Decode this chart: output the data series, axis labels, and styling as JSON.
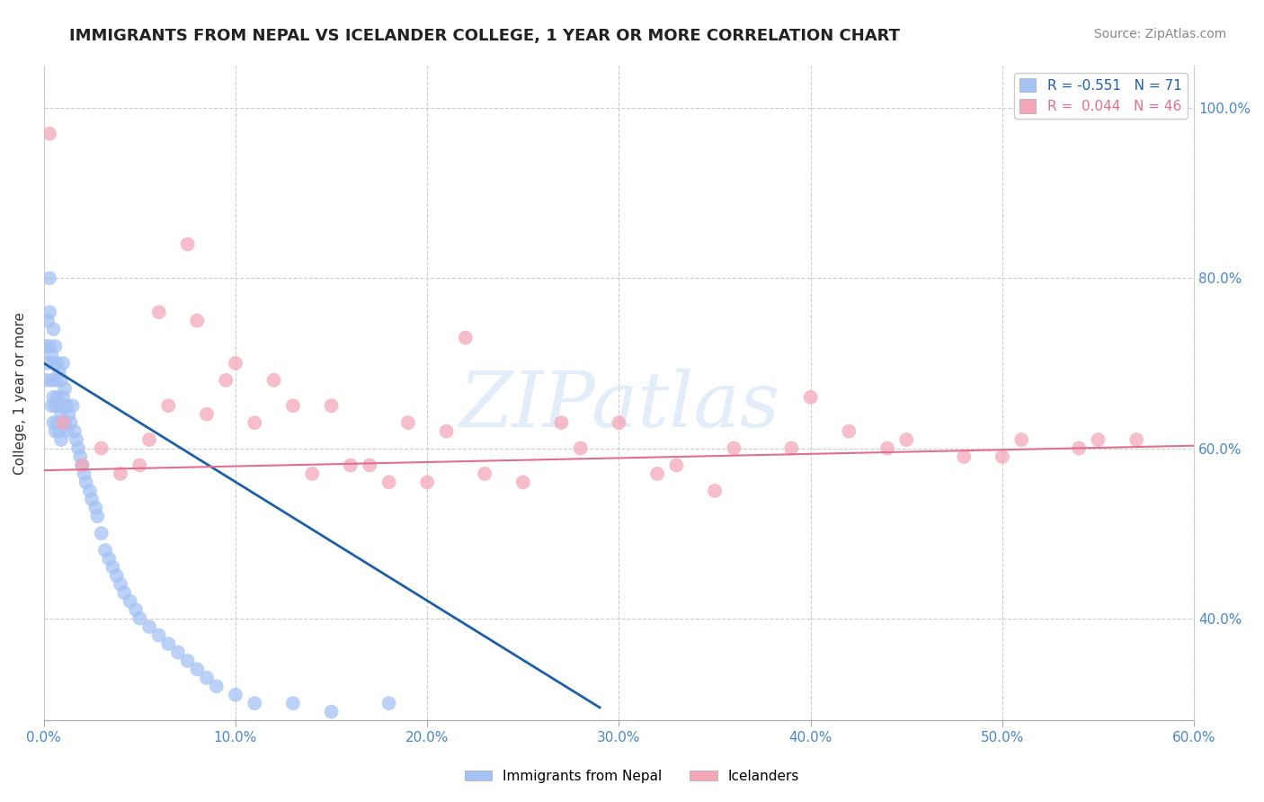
{
  "title": "IMMIGRANTS FROM NEPAL VS ICELANDER COLLEGE, 1 YEAR OR MORE CORRELATION CHART",
  "source": "Source: ZipAtlas.com",
  "ylabel": "College, 1 year or more",
  "legend_labels_bottom": [
    "Immigrants from Nepal",
    "Icelanders"
  ],
  "nepal_scatter_x": [
    0.001,
    0.001,
    0.002,
    0.002,
    0.003,
    0.003,
    0.003,
    0.004,
    0.004,
    0.004,
    0.005,
    0.005,
    0.005,
    0.005,
    0.006,
    0.006,
    0.006,
    0.006,
    0.007,
    0.007,
    0.007,
    0.008,
    0.008,
    0.008,
    0.009,
    0.009,
    0.009,
    0.01,
    0.01,
    0.01,
    0.011,
    0.011,
    0.012,
    0.012,
    0.013,
    0.014,
    0.015,
    0.016,
    0.017,
    0.018,
    0.019,
    0.02,
    0.021,
    0.022,
    0.024,
    0.025,
    0.027,
    0.028,
    0.03,
    0.032,
    0.034,
    0.036,
    0.038,
    0.04,
    0.042,
    0.045,
    0.048,
    0.05,
    0.055,
    0.06,
    0.065,
    0.07,
    0.075,
    0.08,
    0.085,
    0.09,
    0.1,
    0.11,
    0.13,
    0.15,
    0.18
  ],
  "nepal_scatter_y": [
    0.72,
    0.68,
    0.75,
    0.7,
    0.8,
    0.76,
    0.72,
    0.71,
    0.68,
    0.65,
    0.74,
    0.7,
    0.66,
    0.63,
    0.72,
    0.68,
    0.65,
    0.62,
    0.7,
    0.66,
    0.63,
    0.69,
    0.65,
    0.62,
    0.68,
    0.64,
    0.61,
    0.7,
    0.66,
    0.63,
    0.67,
    0.63,
    0.65,
    0.62,
    0.64,
    0.63,
    0.65,
    0.62,
    0.61,
    0.6,
    0.59,
    0.58,
    0.57,
    0.56,
    0.55,
    0.54,
    0.53,
    0.52,
    0.5,
    0.48,
    0.47,
    0.46,
    0.45,
    0.44,
    0.43,
    0.42,
    0.41,
    0.4,
    0.39,
    0.38,
    0.37,
    0.36,
    0.35,
    0.34,
    0.33,
    0.32,
    0.31,
    0.3,
    0.3,
    0.29,
    0.3
  ],
  "iceland_scatter_x": [
    0.003,
    0.01,
    0.02,
    0.03,
    0.04,
    0.05,
    0.055,
    0.065,
    0.075,
    0.085,
    0.095,
    0.11,
    0.13,
    0.15,
    0.17,
    0.19,
    0.21,
    0.23,
    0.25,
    0.27,
    0.3,
    0.33,
    0.36,
    0.39,
    0.42,
    0.45,
    0.48,
    0.51,
    0.54,
    0.57,
    0.06,
    0.12,
    0.22,
    0.28,
    0.14,
    0.16,
    0.2,
    0.35,
    0.4,
    0.5,
    0.08,
    0.18,
    0.32,
    0.44,
    0.55,
    0.1
  ],
  "iceland_scatter_y": [
    0.97,
    0.63,
    0.58,
    0.6,
    0.57,
    0.58,
    0.61,
    0.65,
    0.84,
    0.64,
    0.68,
    0.63,
    0.65,
    0.65,
    0.58,
    0.63,
    0.62,
    0.57,
    0.56,
    0.63,
    0.63,
    0.58,
    0.6,
    0.6,
    0.62,
    0.61,
    0.59,
    0.61,
    0.6,
    0.61,
    0.76,
    0.68,
    0.73,
    0.6,
    0.57,
    0.58,
    0.56,
    0.55,
    0.66,
    0.59,
    0.75,
    0.56,
    0.57,
    0.6,
    0.61,
    0.7
  ],
  "nepal_line_x": [
    0.0,
    0.29
  ],
  "nepal_line_y": [
    0.7,
    0.295
  ],
  "iceland_line_x": [
    0.0,
    0.6
  ],
  "iceland_line_y": [
    0.574,
    0.603
  ],
  "nepal_line_color": "#1f5fa6",
  "iceland_line_color": "#e07090",
  "nepal_scatter_color": "#a4c2f4",
  "iceland_scatter_color": "#f4a7b9",
  "watermark": "ZIPatlas",
  "xmin": 0.0,
  "xmax": 0.6,
  "ymin": 0.28,
  "ymax": 1.05,
  "x_ticks": [
    0.0,
    0.1,
    0.2,
    0.3,
    0.4,
    0.5,
    0.6
  ],
  "y_ticks": [
    0.4,
    0.6,
    0.8,
    1.0
  ],
  "nepal_r": -0.551,
  "nepal_n": 71,
  "iceland_r": 0.044,
  "iceland_n": 46,
  "background_color": "#ffffff",
  "grid_color": "#cccccc",
  "title_fontsize": 13,
  "axis_fontsize": 11,
  "tick_color": "#4a86c8",
  "source_fontsize": 10,
  "legend_fontsize": 11
}
